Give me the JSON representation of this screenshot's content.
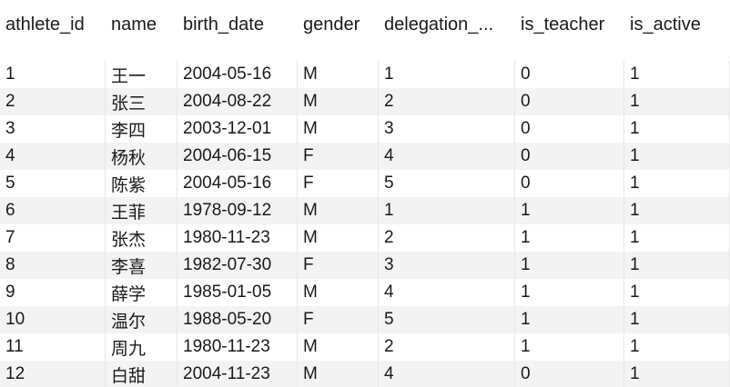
{
  "table": {
    "columns": [
      "athlete_id",
      "name",
      "birth_date",
      "gender",
      "delegation_...",
      "is_teacher",
      "is_active"
    ],
    "rows": [
      [
        "1",
        "王一",
        "2004-05-16",
        "M",
        "1",
        "0",
        "1"
      ],
      [
        "2",
        "张三",
        "2004-08-22",
        "M",
        "2",
        "0",
        "1"
      ],
      [
        "3",
        "李四",
        "2003-12-01",
        "M",
        "3",
        "0",
        "1"
      ],
      [
        "4",
        "杨秋",
        "2004-06-15",
        "F",
        "4",
        "0",
        "1"
      ],
      [
        "5",
        "陈紫",
        "2004-05-16",
        "F",
        "5",
        "0",
        "1"
      ],
      [
        "6",
        "王菲",
        "1978-09-12",
        "M",
        "1",
        "1",
        "1"
      ],
      [
        "7",
        "张杰",
        "1980-11-23",
        "M",
        "2",
        "1",
        "1"
      ],
      [
        "8",
        "李喜",
        "1982-07-30",
        "F",
        "3",
        "1",
        "1"
      ],
      [
        "9",
        "薛学",
        "1985-01-05",
        "M",
        "4",
        "1",
        "1"
      ],
      [
        "10",
        "温尔",
        "1988-05-20",
        "F",
        "5",
        "1",
        "1"
      ],
      [
        "11",
        "周九",
        "1980-11-23",
        "M",
        "2",
        "1",
        "1"
      ],
      [
        "12",
        "白甜",
        "2004-11-23",
        "M",
        "4",
        "0",
        "1"
      ]
    ]
  },
  "colors": {
    "stripe": "#f3f3f3",
    "background": "#ffffff",
    "text": "#1a1a1a",
    "divider": "#e6e6e6"
  }
}
